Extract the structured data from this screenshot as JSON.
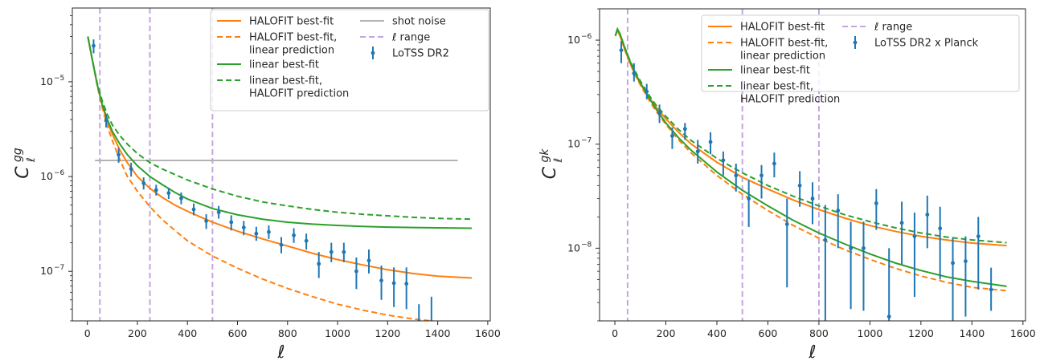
{
  "figure": {
    "panel_count": 2
  },
  "chart_data": [
    {
      "type": "line",
      "id": "left",
      "title": "",
      "xlabel": "ℓ",
      "ylabel": "C_ℓ^gg",
      "ylabel_main": "C",
      "ylabel_sub": "ℓ",
      "ylabel_sup": "gg",
      "xscale": "linear",
      "yscale": "log",
      "xlim": [
        -60,
        1610
      ],
      "ylim": [
        3e-08,
        6e-05
      ],
      "xticks": [
        0,
        200,
        400,
        600,
        800,
        1000,
        1200,
        1400,
        1600
      ],
      "xtick_labels": [
        "0",
        "200",
        "400",
        "600",
        "800",
        "1000",
        "1200",
        "1400",
        "1600"
      ],
      "yticks": [
        1e-07,
        1e-06,
        1e-05
      ],
      "ytick_labels": [
        "10",
        "10",
        "10"
      ],
      "ytick_exponents": [
        "−7",
        "−6",
        "−5"
      ],
      "grid": false,
      "legend": {
        "placement": "top-right",
        "columns": 2,
        "entries": [
          {
            "label": "HALOFIT best-fit",
            "style": "solid",
            "color": "#ff7f0e"
          },
          {
            "label": "HALOFIT best-fit,\nlinear prediction",
            "style": "dashed",
            "color": "#ff7f0e"
          },
          {
            "label": "linear best-fit",
            "style": "solid",
            "color": "#2ca02c"
          },
          {
            "label": "linear best-fit,\nHALOFIT prediction",
            "style": "dashed",
            "color": "#2ca02c"
          },
          {
            "label": "shot noise",
            "style": "solid",
            "color": "#b3b3b3"
          },
          {
            "label": "ℓ range",
            "style": "dashed",
            "color": "#c3a6e0"
          },
          {
            "label": "LoTSS DR2",
            "style": "errorbar",
            "color": "#1f77b4"
          }
        ]
      },
      "vlines": [
        50,
        250,
        500
      ],
      "hlines": [
        {
          "y": 1.48e-06,
          "x": [
            30,
            1480
          ],
          "color": "#b3b3b3"
        }
      ],
      "series": [
        {
          "style": "solid",
          "color": "#ff7f0e",
          "x": [
            2,
            20,
            40,
            60,
            80,
            100,
            130,
            160,
            200,
            250,
            300,
            350,
            400,
            500,
            600,
            700,
            800,
            900,
            1000,
            1100,
            1200,
            1300,
            1400,
            1536
          ],
          "y": [
            3e-05,
            1.7e-05,
            9.2e-06,
            5.6e-06,
            3.8e-06,
            2.8e-06,
            1.9e-06,
            1.4e-06,
            1e-06,
            7.5e-07,
            6e-07,
            5e-07,
            4.3e-07,
            3.3e-07,
            2.65e-07,
            2.2e-07,
            1.85e-07,
            1.55e-07,
            1.33e-07,
            1.17e-07,
            1.04e-07,
            9.5e-08,
            8.9e-08,
            8.5e-08
          ]
        },
        {
          "style": "dashed",
          "color": "#ff7f0e",
          "x": [
            2,
            20,
            40,
            60,
            80,
            100,
            130,
            160,
            200,
            250,
            300,
            350,
            400,
            500,
            600,
            700,
            800,
            900,
            1000,
            1100,
            1200,
            1300,
            1400,
            1460
          ],
          "y": [
            3e-05,
            1.7e-05,
            9e-06,
            5.3e-06,
            3.4e-06,
            2.4e-06,
            1.5e-06,
            1e-06,
            7e-07,
            4.8e-07,
            3.5e-07,
            2.7e-07,
            2.1e-07,
            1.45e-07,
            1.08e-07,
            8.3e-08,
            6.6e-08,
            5.4e-08,
            4.5e-08,
            3.9e-08,
            3.45e-08,
            3.15e-08,
            2.95e-08,
            2.85e-08
          ]
        },
        {
          "style": "solid",
          "color": "#2ca02c",
          "x": [
            2,
            20,
            40,
            60,
            80,
            100,
            130,
            160,
            200,
            250,
            300,
            350,
            400,
            500,
            600,
            700,
            800,
            900,
            1000,
            1100,
            1200,
            1300,
            1400,
            1536
          ],
          "y": [
            3e-05,
            1.7e-05,
            9.2e-06,
            5.7e-06,
            4e-06,
            3e-06,
            2.2e-06,
            1.7e-06,
            1.3e-06,
            1e-06,
            8.2e-07,
            6.8e-07,
            5.8e-07,
            4.6e-07,
            3.95e-07,
            3.55e-07,
            3.3e-07,
            3.15e-07,
            3.05e-07,
            2.98e-07,
            2.93e-07,
            2.9e-07,
            2.88e-07,
            2.85e-07
          ]
        },
        {
          "style": "dashed",
          "color": "#2ca02c",
          "x": [
            2,
            20,
            40,
            60,
            80,
            100,
            130,
            160,
            200,
            250,
            300,
            350,
            400,
            500,
            600,
            700,
            800,
            900,
            1000,
            1100,
            1200,
            1300,
            1400,
            1536
          ],
          "y": [
            3e-05,
            1.7e-05,
            9.5e-06,
            6.2e-06,
            4.5e-06,
            3.5e-06,
            2.7e-06,
            2.2e-06,
            1.75e-06,
            1.4e-06,
            1.2e-06,
            1.05e-06,
            9.2e-07,
            7.4e-07,
            6.2e-07,
            5.4e-07,
            4.9e-07,
            4.5e-07,
            4.2e-07,
            4e-07,
            3.85e-07,
            3.72e-07,
            3.62e-07,
            3.55e-07
          ]
        }
      ],
      "points": {
        "name": "LoTSS DR2",
        "color": "#1f77b4",
        "x": [
          25,
          75,
          125,
          175,
          225,
          275,
          325,
          375,
          425,
          475,
          525,
          575,
          625,
          675,
          725,
          775,
          825,
          875,
          925,
          975,
          1025,
          1075,
          1125,
          1175,
          1225,
          1275,
          1325,
          1375
        ],
        "y": [
          2.4e-05,
          3.9e-06,
          1.7e-06,
          1.2e-06,
          8.5e-07,
          7.2e-07,
          6.7e-07,
          5.9e-07,
          4.5e-07,
          3.4e-07,
          4.2e-07,
          3.3e-07,
          2.9e-07,
          2.5e-07,
          2.6e-07,
          1.9e-07,
          2.4e-07,
          2.1e-07,
          1.2e-07,
          1.6e-07,
          1.6e-07,
          1e-07,
          1.3e-07,
          8e-08,
          7.5e-08,
          7.4e-08,
          2.6e-08,
          2.6e-08
        ],
        "ylo": [
          2e-05,
          3.3e-06,
          1.4e-06,
          1e-06,
          7.3e-07,
          6.3e-07,
          5.8e-07,
          5.1e-07,
          3.9e-07,
          2.8e-07,
          3.6e-07,
          2.7e-07,
          2.4e-07,
          2.1e-07,
          2.2e-07,
          1.55e-07,
          2e-07,
          1.7e-07,
          8.5e-08,
          1.25e-07,
          1.25e-07,
          6.5e-08,
          9.5e-08,
          5e-08,
          4.2e-08,
          4e-08,
          2.9e-08,
          2.9e-08
        ],
        "yhi": [
          2.8e-05,
          4.5e-06,
          2e-06,
          1.4e-06,
          9.8e-07,
          8.2e-07,
          7.6e-07,
          6.8e-07,
          5.2e-07,
          4e-07,
          4.9e-07,
          3.9e-07,
          3.4e-07,
          2.95e-07,
          3.05e-07,
          2.3e-07,
          2.85e-07,
          2.5e-07,
          1.6e-07,
          2e-07,
          2e-07,
          1.4e-07,
          1.7e-07,
          1.15e-07,
          1.1e-07,
          1.1e-07,
          4.5e-08,
          5.4e-08
        ]
      }
    },
    {
      "type": "line",
      "id": "right",
      "title": "",
      "xlabel": "ℓ",
      "ylabel": "C_ℓ^gk",
      "ylabel_main": "C",
      "ylabel_sub": "ℓ",
      "ylabel_sup": "gk",
      "xscale": "linear",
      "yscale": "log",
      "xlim": [
        -60,
        1610
      ],
      "ylim": [
        2e-09,
        2e-06
      ],
      "xticks": [
        0,
        200,
        400,
        600,
        800,
        1000,
        1200,
        1400,
        1600
      ],
      "xtick_labels": [
        "0",
        "200",
        "400",
        "600",
        "800",
        "1000",
        "1200",
        "1400",
        "1600"
      ],
      "yticks": [
        1e-08,
        1e-07,
        1e-06
      ],
      "ytick_labels": [
        "10",
        "10",
        "10"
      ],
      "ytick_exponents": [
        "−8",
        "−7",
        "−6"
      ],
      "grid": false,
      "legend": {
        "placement": "top-right",
        "columns": 2,
        "entries": [
          {
            "label": "HALOFIT best-fit",
            "style": "solid",
            "color": "#ff7f0e"
          },
          {
            "label": "HALOFIT best-fit,\nlinear prediction",
            "style": "dashed",
            "color": "#ff7f0e"
          },
          {
            "label": "linear best-fit",
            "style": "solid",
            "color": "#2ca02c"
          },
          {
            "label": "linear best-fit,\nHALOFIT prediction",
            "style": "dashed",
            "color": "#2ca02c"
          },
          {
            "label": "ℓ range",
            "style": "dashed",
            "color": "#c3a6e0"
          },
          {
            "label": "LoTSS DR2 x Planck",
            "style": "errorbar",
            "color": "#1f77b4"
          }
        ]
      },
      "vlines": [
        50,
        500,
        800
      ],
      "hlines": [],
      "series": [
        {
          "style": "solid",
          "color": "#ff7f0e",
          "x": [
            2,
            10,
            20,
            40,
            60,
            80,
            100,
            130,
            160,
            200,
            250,
            300,
            400,
            500,
            600,
            700,
            800,
            900,
            1000,
            1100,
            1200,
            1300,
            1400,
            1536
          ],
          "y": [
            1.1e-06,
            1.25e-06,
            1.1e-06,
            8e-07,
            6e-07,
            4.7e-07,
            3.8e-07,
            2.9e-07,
            2.3e-07,
            1.75e-07,
            1.3e-07,
            1e-07,
            6.7e-08,
            4.8e-08,
            3.7e-08,
            2.9e-08,
            2.35e-08,
            1.95e-08,
            1.65e-08,
            1.45e-08,
            1.3e-08,
            1.2e-08,
            1.12e-08,
            1.06e-08
          ]
        },
        {
          "style": "dashed",
          "color": "#ff7f0e",
          "x": [
            2,
            10,
            20,
            40,
            60,
            80,
            100,
            130,
            160,
            200,
            250,
            300,
            400,
            500,
            600,
            700,
            800,
            900,
            1000,
            1100,
            1200,
            1300,
            1400,
            1536
          ],
          "y": [
            1.1e-06,
            1.25e-06,
            1.1e-06,
            7.9e-07,
            5.9e-07,
            4.6e-07,
            3.7e-07,
            2.75e-07,
            2.1e-07,
            1.55e-07,
            1.1e-07,
            8.2e-08,
            5e-08,
            3.3e-08,
            2.3e-08,
            1.65e-08,
            1.25e-08,
            9.7e-09,
            7.8e-09,
            6.4e-09,
            5.4e-09,
            4.7e-09,
            4.2e-09,
            3.9e-09
          ]
        },
        {
          "style": "solid",
          "color": "#2ca02c",
          "x": [
            2,
            10,
            20,
            40,
            60,
            80,
            100,
            130,
            160,
            200,
            250,
            300,
            400,
            500,
            600,
            700,
            800,
            900,
            1000,
            1100,
            1200,
            1300,
            1400,
            1536
          ],
          "y": [
            1.1e-06,
            1.28e-06,
            1.15e-06,
            8.3e-07,
            6.2e-07,
            4.8e-07,
            3.9e-07,
            2.9e-07,
            2.2e-07,
            1.6e-07,
            1.15e-07,
            8.7e-08,
            5.4e-08,
            3.6e-08,
            2.55e-08,
            1.85e-08,
            1.4e-08,
            1.1e-08,
            8.8e-09,
            7.2e-09,
            6.1e-09,
            5.3e-09,
            4.8e-09,
            4.3e-09
          ]
        },
        {
          "style": "dashed",
          "color": "#2ca02c",
          "x": [
            2,
            10,
            20,
            40,
            60,
            80,
            100,
            130,
            160,
            200,
            250,
            300,
            400,
            500,
            600,
            700,
            800,
            900,
            1000,
            1100,
            1200,
            1300,
            1400,
            1536
          ],
          "y": [
            1.1e-06,
            1.28e-06,
            1.15e-06,
            8.4e-07,
            6.3e-07,
            5e-07,
            4.05e-07,
            3.05e-07,
            2.4e-07,
            1.85e-07,
            1.38e-07,
            1.08e-07,
            7.3e-08,
            5.3e-08,
            4e-08,
            3.15e-08,
            2.55e-08,
            2.1e-08,
            1.8e-08,
            1.57e-08,
            1.4e-08,
            1.28e-08,
            1.2e-08,
            1.13e-08
          ]
        }
      ],
      "points": {
        "name": "LoTSS DR2 x Planck",
        "color": "#1f77b4",
        "x": [
          25,
          75,
          125,
          175,
          225,
          275,
          325,
          375,
          425,
          475,
          525,
          575,
          625,
          675,
          725,
          775,
          825,
          875,
          925,
          975,
          1025,
          1075,
          1125,
          1175,
          1225,
          1275,
          1325,
          1375,
          1425,
          1475
        ],
        "y": [
          8e-07,
          4.8e-07,
          3.2e-07,
          2e-07,
          1.2e-07,
          1.4e-07,
          8.5e-08,
          1.05e-07,
          7e-08,
          5e-08,
          3e-08,
          5e-08,
          6.5e-08,
          1.7e-08,
          4e-08,
          3e-08,
          1.2e-08,
          2.3e-08,
          1e-08,
          1e-08,
          2.7e-08,
          2.2e-09,
          1.75e-08,
          1.3e-08,
          2.1e-08,
          1.55e-08,
          7.2e-09,
          7.5e-09,
          1.3e-08,
          4e-09
        ],
        "ylo": [
          6e-07,
          4e-07,
          2.7e-07,
          1.6e-07,
          9e-08,
          1.1e-07,
          6.5e-08,
          8e-08,
          5e-08,
          3.5e-08,
          1.6e-08,
          3e-08,
          4.8e-08,
          4.2e-09,
          2.5e-08,
          1.7e-08,
          2e-09,
          1e-08,
          2.6e-09,
          2.5e-09,
          1.5e-08,
          2e-09,
          7e-09,
          3.4e-09,
          1e-08,
          5e-09,
          2e-09,
          2.2e-09,
          4e-09,
          2.5e-09
        ],
        "yhi": [
          9.8e-07,
          6e-07,
          3.8e-07,
          2.4e-07,
          1.45e-07,
          1.6e-07,
          1.1e-07,
          1.3e-07,
          8.5e-08,
          6.5e-08,
          4.5e-08,
          6.3e-08,
          8.3e-08,
          3e-08,
          5.5e-08,
          4.3e-08,
          2.6e-08,
          3.3e-08,
          1.8e-08,
          1.8e-08,
          3.7e-08,
          1e-08,
          2.8e-08,
          2.2e-08,
          3.2e-08,
          2.5e-08,
          1.25e-08,
          1.3e-08,
          2e-08,
          6.5e-09
        ]
      }
    }
  ]
}
